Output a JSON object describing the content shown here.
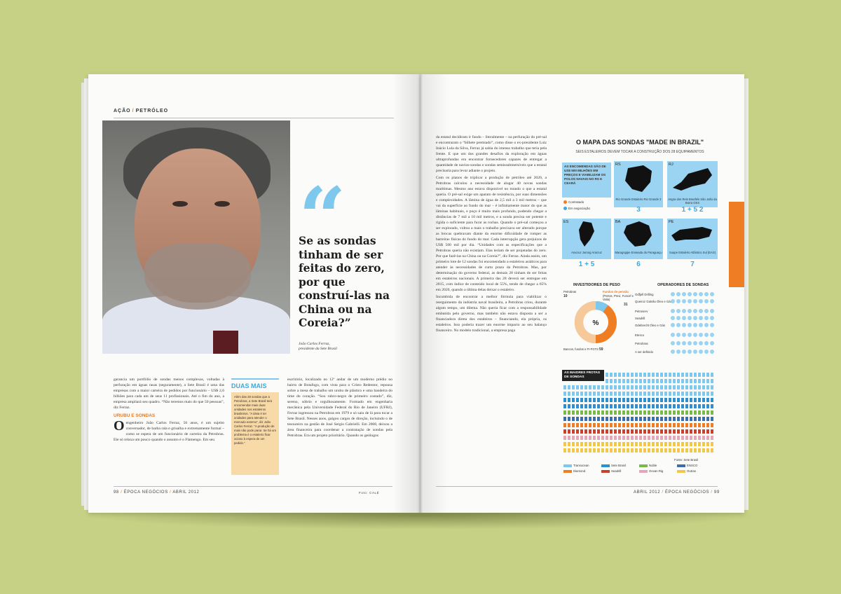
{
  "left_page": {
    "section": {
      "a": "AÇÃO",
      "b": "PETRÓLEO"
    },
    "pull_quote": "Se as sondas tinham de ser feitas do zero, por que construí-las na China ou na Coreia?”",
    "quote_credit_name": "João Carlos Ferraz,",
    "quote_credit_role": "presidente da Sete Brasil",
    "col1_p1": "garancia um portfólio de sondas menos complexas, voltadas à perfuração em águas rasas (seguramente), a Sete Brasil é uma das empresas com a maior carteira de pedidos por funcionário – US$ 2,6 bilhões para cada um de seus 11 profissionais. Até o fim do ano, a empresa ampliará seu quadro. “Não teremos mais do que 50 pessoas”, diz Ferraz.",
    "col1_subhead": "URUBU E SONDAS",
    "col1_dropcap": "O",
    "col1_p2": "engenheiro João Carlos Ferraz, 56 anos, é um sujeito conversador, de barba rala e grisalha e extremamente formal – como se espera de um funcionário de carreira da Petrobras. Ele só relaxa um pouco quando o assunto é o Flamengo. Em seu",
    "sidebar_title": "DUAS MAIS",
    "sidebar_body": "Além das 28 sondas que a Petrobras, a Sete Brasil terá encomendar mais duas unidades nos estaleiros brasileiros. “A ideia é ter unidades para atender o mercado externo”, diz João Carlos Ferraz. “A produção de mais não pode parar. Se há um problema é o estaleiro ficar ocioso à espera de um pedido.”",
    "col2_p1": "escritório, localizado no 12º andar de um moderno prédio no bairro de Botafogo, com vista para o Cristo Redentor, repousa sobre a mesa de trabalho um urubu de plástico e uma bandeira do time do coração. “Sou rubro-negro de primeiro costado”, diz, sereno, sóbrio e orgulhosamente. Formado em engenharia mecânica pela Universidade Federal do Rio de Janeiro (UFRJ), Ferraz ingressou na Petrobras em 1979 e só saiu de lá para tocar a Sete Brasil. Nesses anos, galgou cargos de direção, incluindo o de tesoureiro na gestão de José Sergio Gabrielli. Em 2008, deixou a área financeira para coordenar a contratação de sondas pela Petrobras. Era um projeto prioritário. Quando os geólogos",
    "footer_left": "98",
    "footer_mag": "ÉPOCA NEGÓCIOS",
    "footer_date": "ABRIL 2012",
    "photo_credit": "Foto: CALÉ"
  },
  "right_page": {
    "col3_p1": "da estatal decidiram ir fundo – literalmente – na perfuração do pré-sal e encontraram o “bilhete premiado”, como disse o ex-presidente Luiz Inácio Lula da Silva, Ferraz já sabia do imenso trabalho que teria pela frente. E que um dos grandes desafios da exploração em águas ultraprofundas era encontrar fornecedores capazes de entregar a quantidade de navios-sondas e sondas semissubmersíveis que a estatal precisaria para levar adiante o projeto.",
    "col3_p2": "Com os planos de triplicar a produção de petróleo até 2020, a Petrobras calculou a necessidade de alugar 40 novas sondas marítimas. Mesmo ano estava disponível no mundo o que a estatal queria. O pré-sal exige um aparato de resistência, por suas dimensões e complexidades. A lâmina de água de 2,5 mil a 3 mil metros – que vai da superfície ao fundo do mar – é infinitamente maior do que as lâminas habituais, e poço é muito mais profundo, podendo chegar a distâncias de 7 mil a 10 mil metros, e a sonda precisa ser potente e rígida o suficiente para furar as rochas. Quando o pré-sal começou a ser explorado, voltou a mais o trabalho precisava ser alterado porque as brocas quebravam diante da enorme dificuldade de romper as barreiras físicas do fundo do mar. Cada interrupção gera prejuízos de US$ 500 mil por dia. “Unidades com as especificações que a Petrobras queria não existiam. Elas teriam de ser projetadas do zero. Por que fazê-las na China ou na Coreia?”, diz Ferraz. Ainda assim, um primeiro lote de 12 sondas foi encomendado a estaleiros asiáticos para atender às necessidades de curto prazo da Petrobras. Mas, por determinação do governo federal, as demais 28 tinham de ser feitas em estaleiros nacionais. A primeira das 28 deverá ser entregue em 2015, com índice de conteúdo local de 55%, tendo de chegar a 65% em 2020, quando a última delas deixar o estaleiro.",
    "col3_p3": "Incumbida de encontrar a melhor fórmula para viabilizar o reerguimento da indústria naval brasileira, a Petrobras criou, durante algum tempo, um dilema. Não queria ficar com a responsabilidade embutida pelo governo, mas também não estava disposta a ser a financiadora direta dos estaleiros – financiando, ela própria, os estaleiros. Isso poderia trazer um enorme impacto ao seu balanço financeiro. No modelo tradicional, a empresa paga",
    "footer_date": "ABRIL 2012",
    "footer_mag": "ÉPOCA NEGÓCIOS",
    "footer_right": "99"
  },
  "infographic": {
    "title": "O MAPA DAS SONDAS \"MADE IN BRAZIL\"",
    "subtitle": "SEIS ESTALEIROS DEVEM TOCAR A CONSTRUÇÃO DOS 28 EQUIPAMENTOS",
    "intro": "AS ENCOMENDAS SÃO DE US$ 500 MILHÕES EM PREÇOS E VIABILIZAM OS POLOS NAVAIS NO RS E CEARÁ",
    "legend": {
      "contratado": "Contratado",
      "negociacao": "Em negociação"
    },
    "regions": [
      {
        "code": "RS",
        "name": "Rio Grande Estaleiro Rio Grande 2",
        "num": "3"
      },
      {
        "code": "RJ",
        "name": "Angra dos Reis Brasfels   São João da Barra OSX",
        "num": "1 + 5   2"
      },
      {
        "code": "ES",
        "name": "Aracruz Jurong Aracruz",
        "num": "1 + 5"
      },
      {
        "code": "BA",
        "name": "Maragogipe Enseada do Paraguaçu",
        "num": "6"
      },
      {
        "code": "PE",
        "name": "Suape Estaleiro Atlântico Sul (EAS)",
        "num": "7"
      }
    ],
    "investors": {
      "title": "INVESTIDORES DE PESO",
      "center": "%",
      "petrobras_label": "Petrobras",
      "petrobras_num": "10",
      "fundos_label": "Fundos de pensão",
      "fundos_sub": "(Petros, Previ, Funcef e Valia)",
      "fundos_num": "31",
      "bancos_label": "Bancos, fundos e FI-FGTS",
      "bancos_num": "59"
    },
    "operators": {
      "title": "OPERADORES DE SONDAS",
      "items": [
        "Odfjell Drilling",
        "Queiroz Galvão Óleo e Gás",
        "Petroserv",
        "Seadrill",
        "Odebrecht Óleo e Gás",
        "Etesco",
        "Petrobras",
        "A ser definido"
      ]
    },
    "fleet": {
      "label": "AS MAIORES FROTAS DE SONDAS",
      "legend": [
        {
          "name": "Transocean",
          "color": "#7ec8ee"
        },
        {
          "name": "Sete Brasil",
          "color": "#2f8fce"
        },
        {
          "name": "Noble",
          "color": "#79b84a"
        },
        {
          "name": "ENSCO",
          "color": "#3c6fa8"
        },
        {
          "name": "Diamond",
          "color": "#ee7d24"
        },
        {
          "name": "Seadrill",
          "color": "#c8412f"
        },
        {
          "name": "Ocean Rig",
          "color": "#e3a8b8"
        },
        {
          "name": "Outras",
          "color": "#f2c84b"
        }
      ],
      "note": "Fonte: Sete Brasil"
    },
    "colors": {
      "blue": "#9ad4f2",
      "accent": "#3da8de",
      "orange": "#ee7d24"
    }
  }
}
